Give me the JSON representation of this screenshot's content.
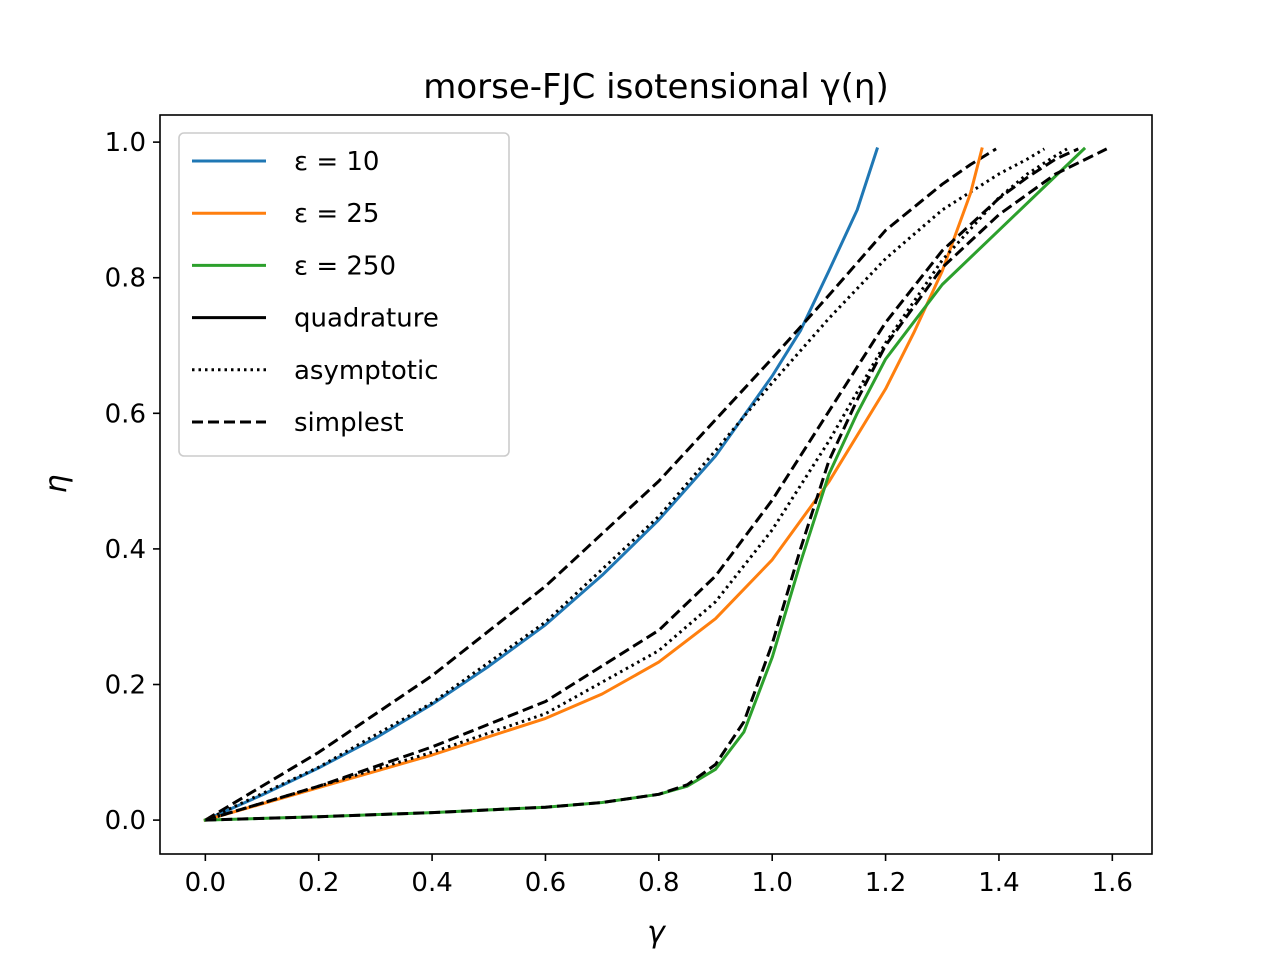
{
  "chart_data": {
    "type": "line",
    "title": "morse-FJC isotensional γ(η)",
    "xlabel": "γ",
    "ylabel": "η",
    "xlim": [
      -0.08,
      1.67
    ],
    "ylim": [
      -0.05,
      1.04
    ],
    "xticks": [
      0.0,
      0.2,
      0.4,
      0.6,
      0.8,
      1.0,
      1.2,
      1.4,
      1.6
    ],
    "xtick_labels": [
      "0.0",
      "0.2",
      "0.4",
      "0.6",
      "0.8",
      "1.0",
      "1.2",
      "1.4",
      "1.6"
    ],
    "yticks": [
      0.0,
      0.2,
      0.4,
      0.6,
      0.8,
      1.0
    ],
    "ytick_labels": [
      "0.0",
      "0.2",
      "0.4",
      "0.6",
      "0.8",
      "1.0"
    ],
    "grid": false,
    "legend_position": "top-left",
    "legend": [
      {
        "label": "ε = 10",
        "color": "#1f77b4",
        "style": "solid"
      },
      {
        "label": "ε = 25",
        "color": "#ff7f0e",
        "style": "solid"
      },
      {
        "label": "ε = 250",
        "color": "#2ca02c",
        "style": "solid"
      },
      {
        "label": "quadrature",
        "color": "#000000",
        "style": "solid"
      },
      {
        "label": "asymptotic",
        "color": "#000000",
        "style": "dotted"
      },
      {
        "label": "simplest",
        "color": "#000000",
        "style": "dashed"
      }
    ],
    "series": [
      {
        "name": "ε = 10",
        "color": "#1f77b4",
        "style": "solid",
        "x": [
          0,
          0.1,
          0.2,
          0.3,
          0.4,
          0.5,
          0.6,
          0.7,
          0.8,
          0.9,
          1.0,
          1.05,
          1.1,
          1.15,
          1.185
        ],
        "y": [
          0,
          0.037,
          0.077,
          0.121,
          0.171,
          0.227,
          0.288,
          0.361,
          0.443,
          0.537,
          0.655,
          0.722,
          0.81,
          0.9,
          0.99
        ]
      },
      {
        "color": "#000000",
        "style": "dotted",
        "x": [
          0,
          0.2,
          0.4,
          0.6,
          0.8,
          0.9,
          1.0,
          1.1,
          1.2,
          1.3,
          1.4,
          1.45,
          1.48
        ],
        "y": [
          0,
          0.078,
          0.173,
          0.292,
          0.448,
          0.545,
          0.645,
          0.74,
          0.828,
          0.9,
          0.953,
          0.975,
          0.99
        ]
      },
      {
        "color": "#000000",
        "style": "dashed",
        "x": [
          0,
          0.2,
          0.4,
          0.6,
          0.8,
          1.0,
          1.1,
          1.2,
          1.3,
          1.35,
          1.395
        ],
        "y": [
          0,
          0.1,
          0.213,
          0.345,
          0.5,
          0.681,
          0.774,
          0.87,
          0.938,
          0.967,
          0.99
        ]
      },
      {
        "name": "ε = 25",
        "color": "#ff7f0e",
        "style": "solid",
        "x": [
          0,
          0.2,
          0.4,
          0.6,
          0.7,
          0.8,
          0.9,
          1.0,
          1.1,
          1.2,
          1.25,
          1.3,
          1.35,
          1.37
        ],
        "y": [
          0,
          0.048,
          0.096,
          0.15,
          0.186,
          0.233,
          0.297,
          0.384,
          0.499,
          0.636,
          0.719,
          0.81,
          0.925,
          0.99
        ]
      },
      {
        "color": "#000000",
        "style": "dotted",
        "x": [
          0,
          0.2,
          0.4,
          0.6,
          0.8,
          0.9,
          1.0,
          1.1,
          1.2,
          1.3,
          1.4,
          1.45,
          1.5,
          1.52
        ],
        "y": [
          0,
          0.05,
          0.1,
          0.157,
          0.25,
          0.322,
          0.428,
          0.559,
          0.704,
          0.826,
          0.918,
          0.953,
          0.98,
          0.99
        ]
      },
      {
        "color": "#000000",
        "style": "dashed",
        "x": [
          0,
          0.2,
          0.4,
          0.6,
          0.8,
          0.9,
          1.0,
          1.1,
          1.2,
          1.3,
          1.4,
          1.45,
          1.5,
          1.54
        ],
        "y": [
          0,
          0.05,
          0.108,
          0.175,
          0.28,
          0.36,
          0.472,
          0.603,
          0.734,
          0.84,
          0.917,
          0.948,
          0.975,
          0.99
        ]
      },
      {
        "name": "ε = 250",
        "color": "#2ca02c",
        "style": "solid",
        "x": [
          0,
          0.2,
          0.4,
          0.6,
          0.7,
          0.8,
          0.85,
          0.9,
          0.95,
          1.0,
          1.05,
          1.1,
          1.15,
          1.2,
          1.3,
          1.4,
          1.5,
          1.55
        ],
        "y": [
          0,
          0.005,
          0.011,
          0.019,
          0.026,
          0.038,
          0.05,
          0.075,
          0.13,
          0.24,
          0.38,
          0.51,
          0.6,
          0.68,
          0.79,
          0.87,
          0.95,
          0.99
        ]
      },
      {
        "color": "#000000",
        "style": "dashed",
        "x": [
          0,
          0.2,
          0.4,
          0.6,
          0.7,
          0.8,
          0.85,
          0.9,
          0.95,
          1.0,
          1.05,
          1.1,
          1.15,
          1.2,
          1.3,
          1.4,
          1.5,
          1.59
        ],
        "y": [
          0,
          0.005,
          0.011,
          0.019,
          0.026,
          0.038,
          0.052,
          0.082,
          0.145,
          0.26,
          0.4,
          0.53,
          0.62,
          0.7,
          0.815,
          0.893,
          0.953,
          0.99
        ]
      }
    ]
  }
}
